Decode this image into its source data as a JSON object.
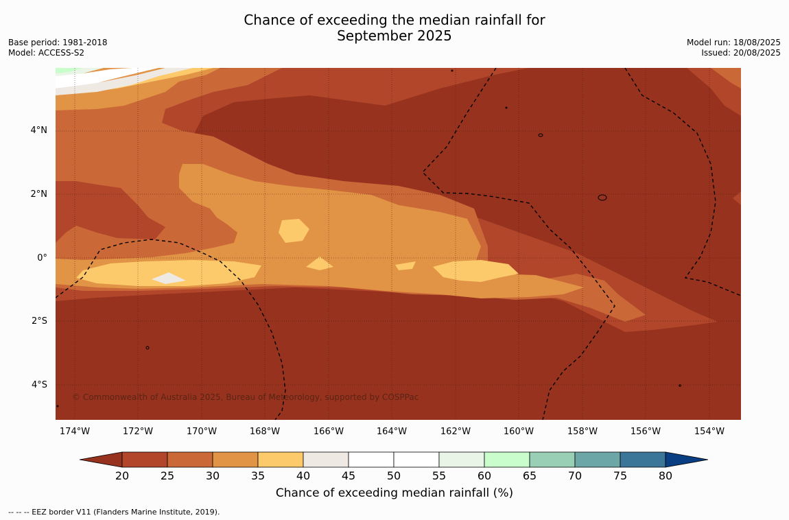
{
  "title_line1": "Chance of exceeding the median rainfall for",
  "title_line2": "September 2025",
  "meta_left": [
    "Base period: 1981-2018",
    "Model: ACCESS-S2"
  ],
  "meta_right": [
    "Model run: 18/08/2025",
    "Issued: 20/08/2025"
  ],
  "lat_labels": [
    "4°N",
    "2°N",
    "0°",
    "2°S",
    "4°S"
  ],
  "lon_labels": [
    "174°W",
    "172°W",
    "170°W",
    "168°W",
    "166°W",
    "164°W",
    "162°W",
    "160°W",
    "158°W",
    "156°W",
    "154°W"
  ],
  "copyright": "© Commonwealth of Australia 2025, Bureau of Meteorology, supported by COSPPac",
  "colorbar": {
    "title": "Chance of exceeding median rainfall (%)",
    "ticks": [
      "20",
      "25",
      "30",
      "35",
      "40",
      "45",
      "50",
      "55",
      "60",
      "65",
      "70",
      "75",
      "80"
    ],
    "colors": [
      "#97321f",
      "#b1462a",
      "#cb6837",
      "#e19346",
      "#fdca6b",
      "#efe9e4",
      "#ffffff",
      "#ffffff",
      "#e9f5e6",
      "#c9fdcc",
      "#99cfb4",
      "#6da6a7",
      "#3b7698",
      "#0a3e82"
    ]
  },
  "footnote": "--  --  -- EEZ border V11 (Flanders Marine Institute, 2019).",
  "colors": {
    "lt20": "#97321f",
    "c20_25": "#b1462a",
    "c25_30": "#cb6837",
    "c30_35": "#e19346",
    "c35_40": "#fdca6b",
    "c40_45": "#efe9e4",
    "c45_55": "#ffffff",
    "c55_60": "#e9f5e6",
    "c60_65": "#c9fdcc"
  }
}
